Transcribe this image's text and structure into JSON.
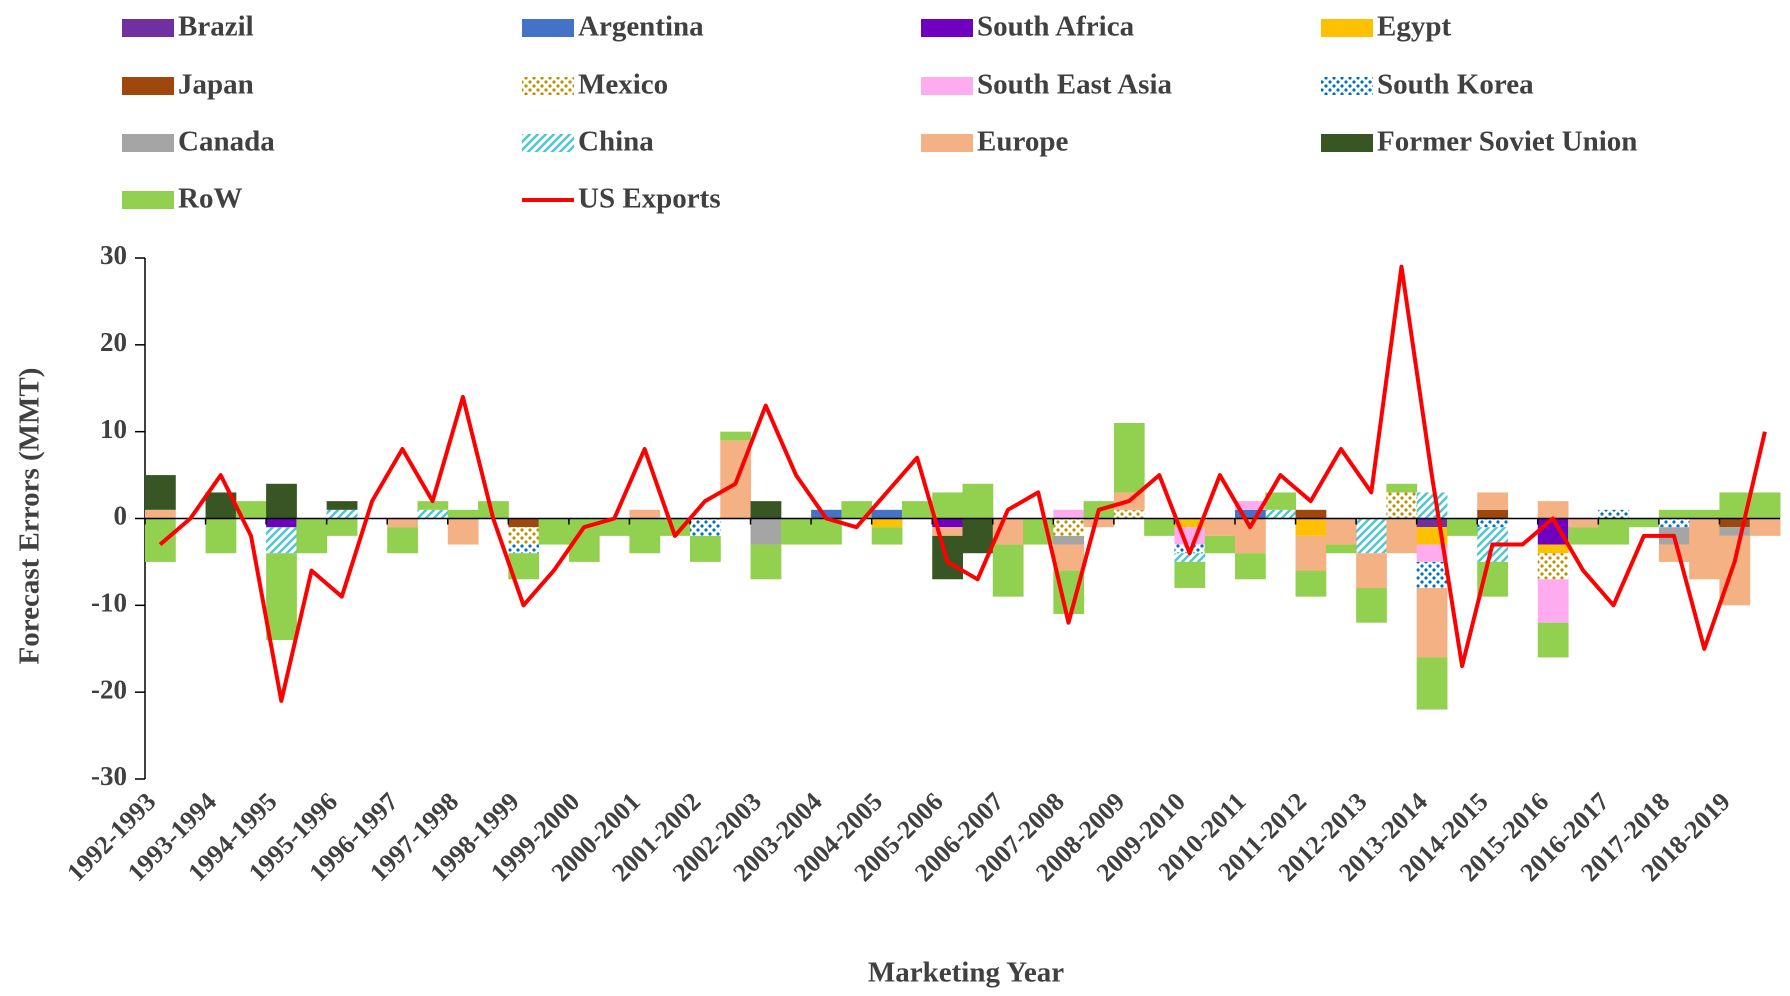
{
  "chart_data": {
    "type": "bar",
    "stacked": true,
    "y_label": "Forecast Errors (MMT)",
    "x_label": "Marketing Year",
    "categories": [
      "1992-1993",
      null,
      "1993-1994",
      null,
      "1994-1995",
      null,
      "1995-1996",
      null,
      "1996-1997",
      null,
      "1997-1998",
      null,
      "1998-1999",
      null,
      "1999-2000",
      null,
      "2000-2001",
      null,
      "2001-2002",
      null,
      "2002-2003",
      null,
      "2003-2004",
      null,
      "2004-2005",
      null,
      "2005-2006",
      null,
      "2006-2007",
      null,
      "2007-2008",
      null,
      "2008-2009",
      null,
      "2009-2010",
      null,
      "2010-2011",
      null,
      "2011-2012",
      null,
      "2012-2013",
      null,
      "2013-2014",
      null,
      "2014-2015",
      null,
      "2015-2016",
      null,
      "2016-2017",
      null,
      "2017-2018",
      null,
      "2018-2019",
      null
    ],
    "ylim": [
      -30,
      30
    ],
    "yticks": [
      -30,
      -20,
      -10,
      0,
      10,
      20,
      30
    ],
    "series": [
      {
        "name": "Brazil",
        "color": "#7030a0",
        "values": [
          0,
          0,
          0,
          0,
          0,
          0,
          0,
          0,
          0,
          0,
          0,
          0,
          0,
          0,
          0,
          0,
          0,
          0,
          0,
          0,
          0,
          0,
          0,
          0,
          0,
          0,
          0,
          0,
          0,
          0,
          0,
          0,
          0,
          0,
          0,
          0,
          0,
          0,
          0,
          0,
          0,
          0,
          -1,
          0,
          0,
          0,
          0,
          0,
          0,
          0,
          0,
          0,
          0,
          0
        ]
      },
      {
        "name": "Argentina",
        "color": "#4472c4",
        "values": [
          0,
          0,
          0,
          0,
          0,
          0,
          0,
          0,
          0,
          0,
          0,
          0,
          0,
          0,
          0,
          0,
          0,
          0,
          0,
          0,
          0,
          0,
          1,
          0,
          1,
          0,
          0,
          0,
          0,
          0,
          0,
          0,
          0,
          0,
          0,
          0,
          1,
          0,
          0,
          0,
          0,
          0,
          0,
          0,
          0,
          0,
          0,
          0,
          0,
          0,
          0,
          0,
          0,
          0
        ]
      },
      {
        "name": "South Africa",
        "color": "#7000c0",
        "values": [
          0,
          0,
          0,
          0,
          -1,
          0,
          0,
          0,
          0,
          0,
          0,
          0,
          0,
          0,
          0,
          0,
          0,
          0,
          0,
          0,
          0,
          0,
          0,
          0,
          0,
          0,
          -1,
          0,
          0,
          0,
          0,
          0,
          0,
          0,
          0,
          0,
          0,
          0,
          0,
          0,
          0,
          0,
          0,
          0,
          0,
          0,
          -3,
          0,
          0,
          0,
          0,
          0,
          0,
          0
        ]
      },
      {
        "name": "Egypt",
        "color": "#ffc000",
        "values": [
          0,
          0,
          0,
          0,
          0,
          0,
          0,
          0,
          0,
          0,
          0,
          0,
          0,
          0,
          0,
          0,
          0,
          0,
          0,
          0,
          0,
          0,
          0,
          0,
          -1,
          0,
          0,
          0,
          0,
          0,
          0,
          0,
          0,
          0,
          -1,
          0,
          0,
          0,
          -2,
          0,
          0,
          0,
          -2,
          0,
          0,
          0,
          -1,
          0,
          0,
          0,
          0,
          0,
          0,
          0
        ]
      },
      {
        "name": "Japan",
        "color": "#9e480e",
        "values": [
          0,
          0,
          0,
          0,
          0,
          0,
          0,
          0,
          0,
          0,
          0,
          0,
          -1,
          0,
          0,
          0,
          0,
          0,
          0,
          0,
          0,
          0,
          0,
          0,
          0,
          0,
          0,
          0,
          0,
          0,
          0,
          0,
          0,
          0,
          0,
          0,
          0,
          0,
          1,
          0,
          0,
          0,
          0,
          0,
          1,
          0,
          0,
          0,
          0,
          0,
          0,
          0,
          -1,
          0
        ]
      },
      {
        "name": "Mexico",
        "color": "#bf8f00",
        "pattern": "dots",
        "values": [
          0,
          0,
          0,
          0,
          0,
          0,
          0,
          0,
          0,
          0,
          0,
          0,
          -2,
          0,
          0,
          0,
          0,
          0,
          0,
          0,
          0,
          0,
          0,
          0,
          0,
          0,
          0,
          0,
          0,
          0,
          -2,
          0,
          1,
          0,
          0,
          0,
          0,
          0,
          0,
          0,
          0,
          3,
          0,
          0,
          0,
          0,
          -3,
          0,
          0,
          0,
          0,
          0,
          0,
          0
        ]
      },
      {
        "name": "South East Asia",
        "color": "#ffabef",
        "values": [
          0,
          0,
          0,
          0,
          0,
          0,
          0,
          0,
          0,
          0,
          0,
          0,
          0,
          0,
          0,
          0,
          0,
          0,
          0,
          0,
          0,
          0,
          0,
          0,
          0,
          0,
          0,
          0,
          0,
          0,
          1,
          0,
          0,
          0,
          -2,
          0,
          1,
          0,
          0,
          0,
          0,
          0,
          -2,
          0,
          0,
          0,
          -5,
          0,
          0,
          0,
          0,
          0,
          0,
          0
        ]
      },
      {
        "name": "South Korea",
        "color": "#0070c0",
        "pattern": "dots",
        "values": [
          0,
          0,
          0,
          0,
          0,
          0,
          0,
          0,
          0,
          0,
          0,
          0,
          -1,
          0,
          0,
          0,
          0,
          0,
          -2,
          0,
          0,
          0,
          0,
          0,
          0,
          0,
          0,
          0,
          0,
          0,
          0,
          0,
          0,
          0,
          -1,
          0,
          0,
          0,
          0,
          0,
          0,
          0,
          -3,
          0,
          -1,
          0,
          0,
          0,
          1,
          0,
          -1,
          0,
          0,
          0
        ]
      },
      {
        "name": "Canada",
        "color": "#a5a5a5",
        "values": [
          0,
          0,
          0,
          0,
          0,
          0,
          0,
          0,
          0,
          0,
          0,
          0,
          0,
          0,
          0,
          0,
          0,
          0,
          0,
          0,
          -3,
          0,
          0,
          0,
          0,
          0,
          0,
          0,
          0,
          0,
          -1,
          0,
          0,
          0,
          0,
          0,
          0,
          0,
          0,
          0,
          0,
          0,
          0,
          0,
          0,
          0,
          0,
          0,
          0,
          0,
          -2,
          0,
          -1,
          0
        ]
      },
      {
        "name": "China",
        "color": "#4bc6d6",
        "pattern": "stripes",
        "values": [
          0,
          0,
          0,
          0,
          -3,
          0,
          1,
          0,
          0,
          1,
          0,
          0,
          0,
          0,
          0,
          0,
          0,
          0,
          0,
          0,
          0,
          0,
          0,
          0,
          0,
          0,
          0,
          0,
          0,
          0,
          0,
          0,
          0,
          0,
          -1,
          0,
          0,
          1,
          0,
          0,
          -4,
          0,
          3,
          0,
          -4,
          0,
          0,
          0,
          0,
          0,
          0,
          0,
          0,
          0
        ]
      },
      {
        "name": "Europe",
        "color": "#f4b183",
        "values": [
          1,
          0,
          0,
          0,
          0,
          0,
          0,
          0,
          -1,
          0,
          -3,
          0,
          0,
          0,
          0,
          0,
          1,
          0,
          0,
          9,
          0,
          0,
          0,
          0,
          0,
          0,
          -1,
          0,
          -3,
          0,
          -3,
          -1,
          2,
          0,
          0,
          -2,
          -4,
          0,
          -4,
          -3,
          -4,
          -4,
          -8,
          0,
          2,
          0,
          2,
          -1,
          0,
          0,
          -2,
          -7,
          -8,
          -2
        ]
      },
      {
        "name": "Former Soviet Union",
        "color": "#375623",
        "values": [
          4,
          0,
          3,
          0,
          4,
          0,
          1,
          0,
          0,
          0,
          0,
          0,
          0,
          0,
          0,
          0,
          0,
          0,
          0,
          0,
          2,
          0,
          0,
          0,
          0,
          0,
          -5,
          -4,
          0,
          0,
          0,
          0,
          0,
          0,
          0,
          0,
          0,
          0,
          0,
          0,
          0,
          0,
          0,
          0,
          0,
          0,
          0,
          0,
          0,
          0,
          0,
          0,
          0,
          0
        ]
      },
      {
        "name": "RoW",
        "color": "#92d050",
        "values": [
          -5,
          0,
          -4,
          2,
          -10,
          -4,
          -2,
          0,
          -3,
          1,
          1,
          2,
          -3,
          -3,
          -5,
          -2,
          -4,
          -2,
          -3,
          1,
          -4,
          -3,
          -3,
          2,
          -2,
          2,
          3,
          4,
          -6,
          -3,
          -5,
          2,
          8,
          -2,
          -3,
          -2,
          -3,
          2,
          -3,
          -1,
          -4,
          1,
          -6,
          -2,
          -4,
          0,
          -4,
          -2,
          -3,
          -1,
          1,
          1,
          3,
          3
        ]
      },
      {
        "name": "US Exports",
        "type": "line",
        "color": "#ff0000",
        "values": [
          -3,
          0,
          5,
          -2,
          -21,
          -6,
          -9,
          2,
          8,
          2,
          14,
          0,
          -10,
          -6,
          -1,
          0,
          8,
          -2,
          2,
          4,
          13,
          5,
          0,
          -1,
          3,
          7,
          -5,
          -7,
          1,
          3,
          -12,
          1,
          2,
          5,
          -4,
          5,
          -1,
          5,
          2,
          8,
          3,
          29,
          5,
          -17,
          -3,
          -3,
          0,
          -6,
          -10,
          -2,
          -2,
          -15,
          -5,
          10
        ]
      }
    ]
  }
}
